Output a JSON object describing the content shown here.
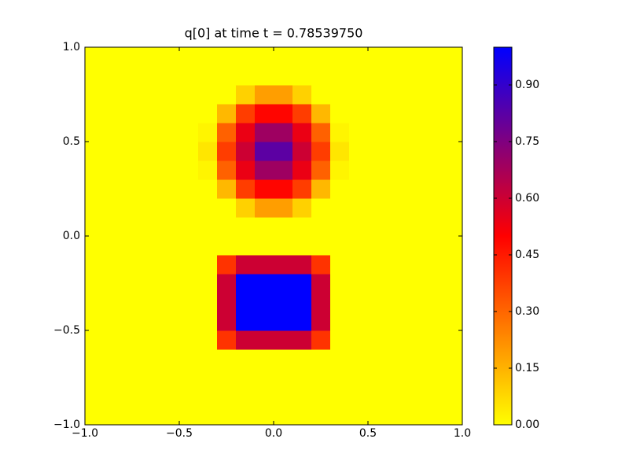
{
  "chart_data": {
    "type": "heatmap",
    "title": "q[0] at time t =     0.78539750",
    "xlim": [
      -1,
      1
    ],
    "ylim": [
      -1,
      1
    ],
    "xticks": [
      {
        "value": -1,
        "label": "−1.0"
      },
      {
        "value": -0.5,
        "label": "−0.5"
      },
      {
        "value": 0,
        "label": "0.0"
      },
      0.5,
      {
        "value": 1,
        "label": "1.0"
      }
    ],
    "yticks": [
      {
        "value": -1,
        "label": "−1.0"
      },
      {
        "value": -0.5,
        "label": "−0.5"
      },
      {
        "value": 0,
        "label": "0.0"
      },
      0.5,
      {
        "value": 1,
        "label": "1.0"
      }
    ],
    "colormap": [
      "#ffff00",
      "#ff0000",
      "#0000ff"
    ],
    "clim": [
      0,
      1
    ],
    "cticks": [
      {
        "value": 0,
        "label": "0.00"
      },
      0.15,
      {
        "value": 0.3,
        "label": "0.30"
      },
      0.45,
      {
        "value": 0.6,
        "label": "0.60"
      },
      0.75,
      {
        "value": 0.9,
        "label": "0.90"
      }
    ],
    "z": [
      [
        0,
        0,
        0,
        0,
        0,
        0,
        0,
        0,
        0,
        0,
        0,
        0,
        0,
        0,
        0,
        0,
        0,
        0,
        0,
        0
      ],
      [
        0,
        0,
        0,
        0,
        0,
        0,
        0,
        0,
        0,
        0,
        0,
        0,
        0,
        0,
        0,
        0,
        0,
        0,
        0,
        0
      ],
      [
        0,
        0,
        0,
        0,
        0,
        0,
        0,
        0,
        0,
        0,
        0,
        0,
        0,
        0,
        0,
        0,
        0,
        0,
        0,
        0
      ],
      [
        0,
        0,
        0,
        0,
        0,
        0,
        0,
        0,
        0,
        0,
        0,
        0,
        0,
        0,
        0,
        0,
        0,
        0,
        0,
        0
      ],
      [
        0,
        0,
        0,
        0,
        0,
        0,
        0,
        0.4,
        0.6,
        0.6,
        0.6,
        0.6,
        0.4,
        0,
        0,
        0,
        0,
        0,
        0,
        0
      ],
      [
        0,
        0,
        0,
        0,
        0,
        0,
        0,
        0.6,
        1,
        1,
        1,
        1,
        0.6,
        0,
        0,
        0,
        0,
        0,
        0,
        0
      ],
      [
        0,
        0,
        0,
        0,
        0,
        0,
        0,
        0.6,
        1,
        1,
        1,
        1,
        0.6,
        0,
        0,
        0,
        0,
        0,
        0,
        0
      ],
      [
        0,
        0,
        0,
        0,
        0,
        0,
        0,
        0.6,
        1,
        1,
        1,
        1,
        0.6,
        0,
        0,
        0,
        0,
        0,
        0,
        0
      ],
      [
        0,
        0,
        0,
        0,
        0,
        0,
        0,
        0.4,
        0.6,
        0.6,
        0.6,
        0.6,
        0.4,
        0,
        0,
        0,
        0,
        0,
        0,
        0
      ],
      [
        0,
        0,
        0,
        0,
        0,
        0,
        0,
        0,
        0,
        0,
        0,
        0,
        0,
        0,
        0,
        0,
        0,
        0,
        0,
        0
      ],
      [
        0,
        0,
        0,
        0,
        0,
        0,
        0,
        0,
        0,
        0,
        0,
        0,
        0,
        0,
        0,
        0,
        0,
        0,
        0,
        0
      ],
      [
        0,
        0,
        0,
        0,
        0,
        0,
        0,
        0,
        0.09,
        0.19,
        0.19,
        0.09,
        0,
        0,
        0,
        0,
        0,
        0,
        0,
        0
      ],
      [
        0,
        0,
        0,
        0,
        0,
        0,
        0,
        0.14,
        0.38,
        0.49,
        0.49,
        0.38,
        0.14,
        0,
        0,
        0,
        0,
        0,
        0,
        0
      ],
      [
        0,
        0,
        0,
        0,
        0,
        0,
        0.02,
        0.31,
        0.54,
        0.69,
        0.69,
        0.54,
        0.31,
        0.02,
        0,
        0,
        0,
        0,
        0,
        0
      ],
      [
        0,
        0,
        0,
        0,
        0,
        0,
        0.05,
        0.38,
        0.6,
        0.82,
        0.82,
        0.6,
        0.38,
        0.05,
        0,
        0,
        0,
        0,
        0,
        0
      ],
      [
        0,
        0,
        0,
        0,
        0,
        0,
        0.02,
        0.31,
        0.54,
        0.69,
        0.69,
        0.54,
        0.31,
        0.02,
        0,
        0,
        0,
        0,
        0,
        0
      ],
      [
        0,
        0,
        0,
        0,
        0,
        0,
        0,
        0.14,
        0.38,
        0.49,
        0.49,
        0.38,
        0.14,
        0,
        0,
        0,
        0,
        0,
        0,
        0
      ],
      [
        0,
        0,
        0,
        0,
        0,
        0,
        0,
        0,
        0.09,
        0.19,
        0.19,
        0.09,
        0,
        0,
        0,
        0,
        0,
        0,
        0,
        0
      ],
      [
        0,
        0,
        0,
        0,
        0,
        0,
        0,
        0,
        0,
        0,
        0,
        0,
        0,
        0,
        0,
        0,
        0,
        0,
        0,
        0
      ],
      [
        0,
        0,
        0,
        0,
        0,
        0,
        0,
        0,
        0,
        0,
        0,
        0,
        0,
        0,
        0,
        0,
        0,
        0,
        0,
        0
      ]
    ]
  }
}
